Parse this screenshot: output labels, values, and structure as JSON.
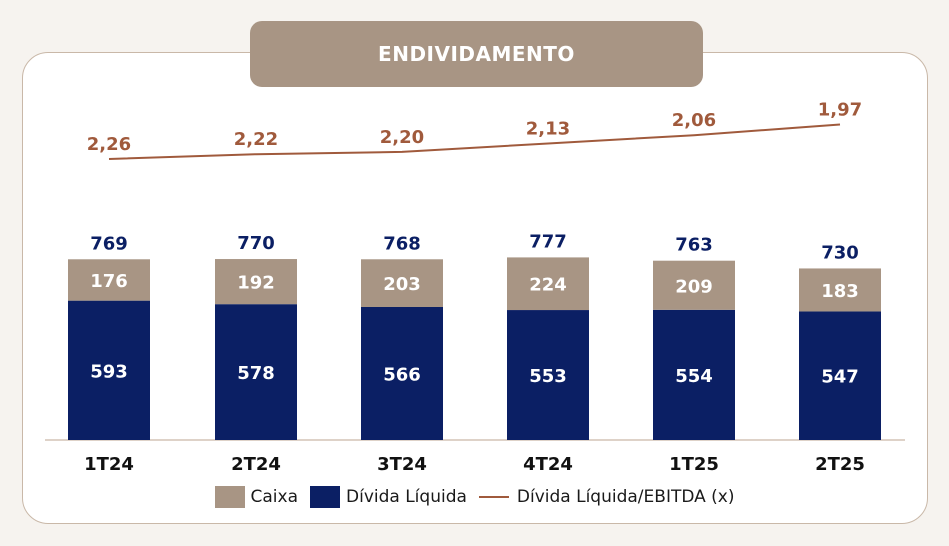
{
  "colors": {
    "caixa": "#a89584",
    "divida": "#0b1f64",
    "line": "#a05a3c",
    "total_label": "#0b1f64",
    "title_bg": "#a89584"
  },
  "chart_data": {
    "type": "bar",
    "title": "ENDIVIDAMENTO",
    "categories": [
      "1T24",
      "2T24",
      "3T24",
      "4T24",
      "1T25",
      "2T25"
    ],
    "series": [
      {
        "name": "Caixa",
        "values": [
          176,
          192,
          203,
          224,
          209,
          183
        ]
      },
      {
        "name": "Dívida Líquida",
        "values": [
          593,
          578,
          566,
          553,
          554,
          547
        ]
      }
    ],
    "totals": [
      769,
      770,
      768,
      777,
      763,
      730
    ],
    "line_series": {
      "name": "Dívida Líquida/EBITDA (x)",
      "values": [
        "2,26",
        "2,22",
        "2,20",
        "2,13",
        "2,06",
        "1,97"
      ]
    },
    "legend": [
      "Caixa",
      "Dívida Líquida",
      "Dívida Líquida/EBITDA (x)"
    ],
    "legend_position": "bottom",
    "grid": false
  }
}
